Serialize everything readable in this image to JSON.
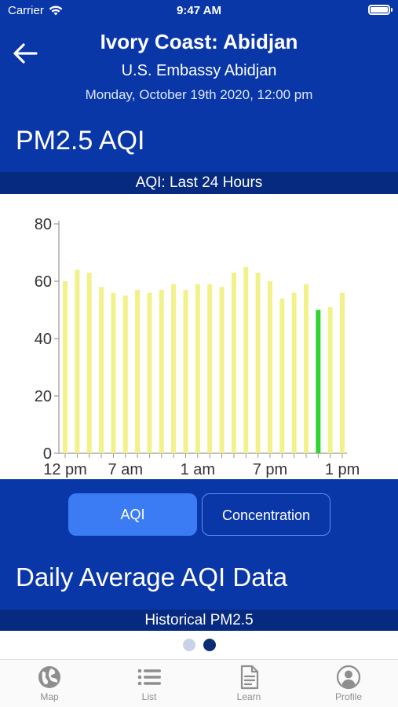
{
  "status_bar": {
    "carrier": "Carrier",
    "time": "9:47 AM"
  },
  "header": {
    "title": "Ivory Coast: Abidjan",
    "station": "U.S. Embassy Abidjan",
    "datetime": "Monday, October 19th 2020, 12:00 pm",
    "section_title": "PM2.5 AQI"
  },
  "chart_label": "AQI: Last 24 Hours",
  "chart_data": {
    "type": "bar",
    "title": "",
    "xlabel": "",
    "ylabel": "",
    "ylim": [
      0,
      80
    ],
    "yticks": [
      "0",
      "20",
      "40",
      "60",
      "80"
    ],
    "xtick_labels": [
      "12 pm",
      "7 am",
      "1 am",
      "7 pm",
      "1 pm"
    ],
    "values": [
      60,
      64,
      63,
      58,
      56,
      55,
      57,
      56,
      57,
      59,
      57,
      59,
      59,
      58,
      63,
      65,
      63,
      60,
      54,
      56,
      59,
      50,
      51,
      56
    ],
    "highlight_index": 21,
    "bar_color": "#f2f28a",
    "highlight_color": "#2fd42f",
    "grid": false
  },
  "toggle": {
    "aqi_label": "AQI",
    "concentration_label": "Concentration",
    "selected": "AQI"
  },
  "daily_title": "Daily Average AQI Data",
  "historical_label": "Historical PM2.5",
  "pager": {
    "count": 2,
    "active": 1
  },
  "tabs": [
    {
      "label": "Map",
      "icon": "globe-icon"
    },
    {
      "label": "List",
      "icon": "list-icon"
    },
    {
      "label": "Learn",
      "icon": "document-icon"
    },
    {
      "label": "Profile",
      "icon": "person-icon"
    }
  ],
  "colors": {
    "primary": "#0a37a8",
    "dark_band": "#062a80",
    "accent_button": "#3b7cf5"
  }
}
